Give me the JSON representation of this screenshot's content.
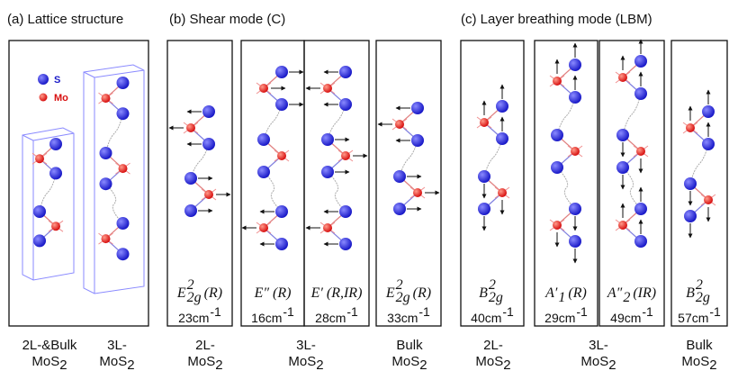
{
  "panels": [
    {
      "title": "(a) Lattice structure",
      "legend": [
        {
          "label": "S"
        },
        {
          "label": "Mo"
        }
      ],
      "groups": [
        {
          "line1": "2L-&Bulk",
          "line2": "MoS",
          "line2_sub": "2"
        },
        {
          "line1": "3L-",
          "line2": "MoS",
          "line2_sub": "2"
        }
      ]
    },
    {
      "title": "(b) Shear mode (C)",
      "modes": [
        {
          "base": "E",
          "sup": "2",
          "sub": "2g",
          "suffix": "(R)",
          "freq": "23cm",
          "freq_sup": "-1"
        },
        {
          "base": "E″",
          "suffix": "(R)",
          "freq": "16cm",
          "freq_sup": "-1"
        },
        {
          "base": "E′",
          "suffix": "(R,IR)",
          "freq": "28cm",
          "freq_sup": "-1"
        },
        {
          "base": "E",
          "sup": "2",
          "sub": "2g",
          "suffix": "(R)",
          "freq": "33cm",
          "freq_sup": "-1"
        }
      ],
      "groups": [
        {
          "line1": "2L-",
          "line2": "MoS",
          "line2_sub": "2"
        },
        {
          "line1": "3L-",
          "line2": "MoS",
          "line2_sub": "2"
        },
        {
          "line1": "Bulk",
          "line2": "MoS",
          "line2_sub": "2"
        }
      ]
    },
    {
      "title": "(c) Layer breathing mode (LBM)",
      "modes": [
        {
          "base": "B",
          "sup": "2",
          "sub": "2g",
          "freq": "40cm",
          "freq_sup": "-1"
        },
        {
          "base": "A′",
          "sub": "1",
          "suffix": "(R)",
          "freq": "29cm",
          "freq_sup": "-1"
        },
        {
          "base": "A″",
          "sub": "2",
          "suffix": "(IR)",
          "freq": "49cm",
          "freq_sup": "-1"
        },
        {
          "base": "B",
          "sup": "2",
          "sub": "2g",
          "freq": "57cm",
          "freq_sup": "-1"
        }
      ],
      "groups": [
        {
          "line1": "2L-",
          "line2": "MoS",
          "line2_sub": "2"
        },
        {
          "line1": "3L-",
          "line2": "MoS",
          "line2_sub": "2"
        },
        {
          "line1": "Bulk",
          "line2": "MoS",
          "line2_sub": "2"
        }
      ]
    }
  ]
}
